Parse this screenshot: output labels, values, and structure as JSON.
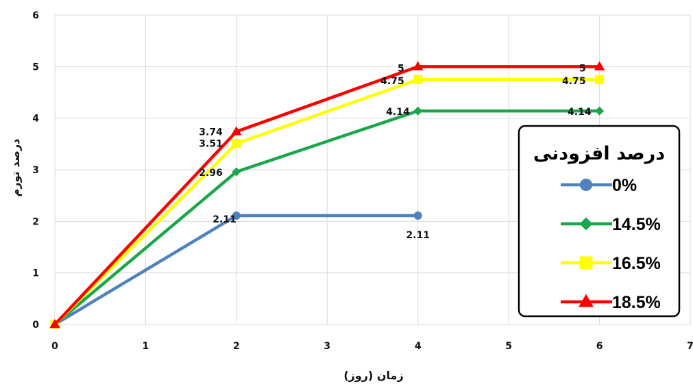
{
  "chart_data": {
    "type": "line",
    "xlabel": "زمان (روز)",
    "ylabel": "درصد تورم",
    "xlim": [
      0,
      7
    ],
    "ylim": [
      0,
      6
    ],
    "x_ticks": [
      0,
      1,
      2,
      3,
      4,
      5,
      6,
      7
    ],
    "y_ticks": [
      0,
      1,
      2,
      3,
      4,
      5,
      6
    ],
    "grid": true,
    "legend": {
      "title": "درصد افزودنی",
      "position": "right"
    },
    "series": [
      {
        "name": "0%",
        "color": "#4f81bd",
        "marker": "circle",
        "points": [
          {
            "x": 0,
            "y": 0
          },
          {
            "x": 2,
            "y": 2.11
          },
          {
            "x": 4,
            "y": 2.11
          }
        ],
        "labels": [
          null,
          "2.11",
          "2.11"
        ]
      },
      {
        "name": "14.5%",
        "color": "#1aa74a",
        "marker": "diamond",
        "points": [
          {
            "x": 0,
            "y": 0
          },
          {
            "x": 2,
            "y": 2.96
          },
          {
            "x": 4,
            "y": 4.14
          },
          {
            "x": 6,
            "y": 4.14
          }
        ],
        "labels": [
          null,
          "2.96",
          "4.14",
          "4.14"
        ]
      },
      {
        "name": "16.5%",
        "color": "#ffff00",
        "marker": "square",
        "points": [
          {
            "x": 0,
            "y": 0
          },
          {
            "x": 2,
            "y": 3.51
          },
          {
            "x": 4,
            "y": 4.75
          },
          {
            "x": 6,
            "y": 4.75
          }
        ],
        "labels": [
          null,
          "3.51",
          "4.75",
          "4.75"
        ]
      },
      {
        "name": "18.5%",
        "color": "#ff0000",
        "marker": "triangle",
        "points": [
          {
            "x": 0,
            "y": 0
          },
          {
            "x": 2,
            "y": 3.74
          },
          {
            "x": 4,
            "y": 5
          },
          {
            "x": 6,
            "y": 5
          }
        ],
        "labels": [
          null,
          "3.74",
          "5",
          "5"
        ]
      }
    ]
  }
}
